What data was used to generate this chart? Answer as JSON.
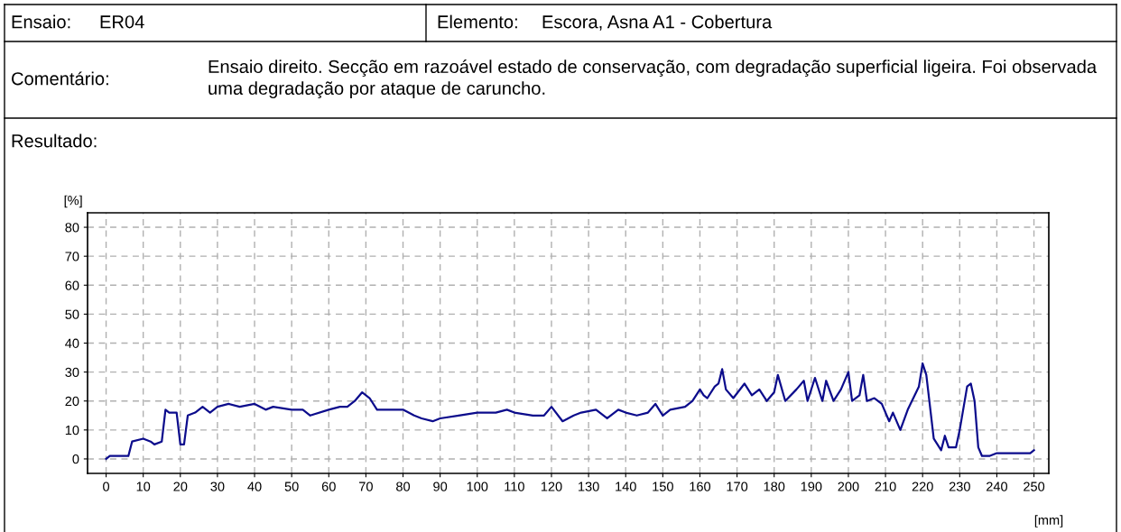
{
  "chart_data": {
    "type": "line",
    "annotations": [
      "Ensaio:",
      "ER04",
      "Elemento:",
      "Escora, Asna A1 - Cobertura",
      "Comentário:",
      "Ensaio direito. Secção em razoável estado de conservação, com degradação superficial ligeira. Foi observada uma degradação por ataque de caruncho.",
      "Resultado:"
    ],
    "ylabel": "[%]",
    "xlabel": "[mm]",
    "series": [
      {
        "color": "#0c0c8c",
        "x": [
          0,
          1,
          6,
          7,
          10,
          12,
          13,
          15,
          16,
          17,
          19,
          20,
          21,
          22,
          24,
          26,
          28,
          30,
          33,
          36,
          40,
          43,
          45,
          50,
          53,
          55,
          60,
          63,
          65,
          67,
          69,
          71,
          73,
          76,
          80,
          83,
          85,
          88,
          90,
          95,
          100,
          105,
          108,
          110,
          115,
          118,
          120,
          123,
          126,
          128,
          132,
          135,
          138,
          140,
          143,
          146,
          148,
          150,
          152,
          156,
          158,
          160,
          161,
          162,
          164,
          165,
          166,
          167,
          169,
          172,
          174,
          176,
          178,
          180,
          181,
          183,
          186,
          188,
          189,
          191,
          193,
          194,
          196,
          198,
          200,
          201,
          203,
          204,
          205,
          207,
          209,
          211,
          212,
          214,
          216,
          219,
          220,
          221,
          222,
          223,
          225,
          226,
          227,
          229,
          230,
          232,
          233,
          234,
          235,
          236,
          238,
          240,
          245,
          249,
          250
        ],
        "values": [
          0,
          1,
          1,
          6,
          7,
          6,
          5,
          6,
          17,
          16,
          16,
          5,
          5,
          15,
          16,
          18,
          16,
          18,
          19,
          18,
          19,
          17,
          18,
          17,
          17,
          15,
          17,
          18,
          18,
          20,
          23,
          21,
          17,
          17,
          17,
          15,
          14,
          13,
          14,
          15,
          16,
          16,
          17,
          16,
          15,
          15,
          18,
          13,
          15,
          16,
          17,
          14,
          17,
          16,
          15,
          16,
          19,
          15,
          17,
          18,
          20,
          24,
          22,
          21,
          25,
          26,
          31,
          24,
          21,
          26,
          22,
          24,
          20,
          23,
          29,
          20,
          24,
          27,
          20,
          28,
          20,
          27,
          20,
          24,
          30,
          20,
          22,
          29,
          20,
          21,
          19,
          13,
          16,
          10,
          17,
          25,
          33,
          29,
          18,
          7,
          3,
          8,
          4,
          4,
          10,
          25,
          26,
          20,
          4,
          1,
          1,
          2,
          2,
          2,
          3
        ]
      }
    ],
    "xlim": [
      -5,
      254
    ],
    "ylim": [
      -5,
      85
    ],
    "xticks": [
      0,
      10,
      20,
      30,
      40,
      50,
      60,
      70,
      80,
      90,
      100,
      110,
      120,
      130,
      140,
      150,
      160,
      170,
      180,
      190,
      200,
      210,
      220,
      230,
      240,
      250
    ],
    "yticks": [
      0,
      10,
      20,
      30,
      40,
      50,
      60,
      70,
      80
    ],
    "grid": true,
    "marker": "none",
    "line_style": "solid"
  }
}
